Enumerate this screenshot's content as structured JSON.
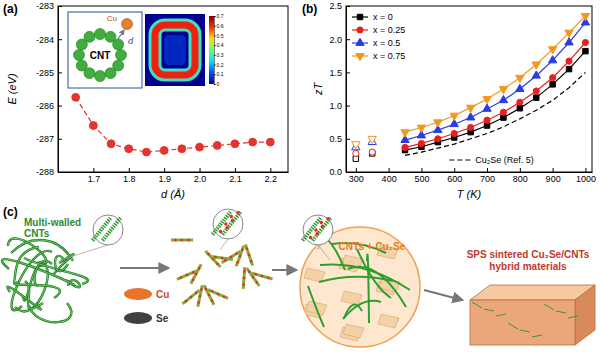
{
  "chart_data": [
    {
      "type": "line",
      "title": "(a)",
      "x_label": "d (Å)",
      "y_label": "E (eV)",
      "x": [
        1.65,
        1.7,
        1.75,
        1.8,
        1.85,
        1.9,
        1.95,
        2.0,
        2.05,
        2.1,
        2.15,
        2.2
      ],
      "xlim": [
        1.6,
        2.25
      ],
      "xticks": [
        1.7,
        1.8,
        1.9,
        {
          "value": 2,
          "label": "2.0"
        },
        2.1,
        2.2
      ],
      "ylim": [
        -288,
        -283
      ],
      "yticks": [
        -288,
        -287,
        -286,
        -285,
        -284,
        -283
      ],
      "series": [
        {
          "color": "#e3342f",
          "marker": "circle",
          "line_style": "dashed",
          "values": [
            -285.75,
            -286.6,
            -287.15,
            -287.3,
            -287.4,
            -287.35,
            -287.3,
            -287.25,
            -287.2,
            -287.15,
            -287.1,
            -287.1
          ]
        }
      ],
      "inset": {
        "labels": [
          "CNT",
          "Cu",
          "d"
        ],
        "colorbar": {
          "range": [
            0,
            0.7
          ],
          "ticks": [
            0,
            0.1,
            0.2,
            0.3,
            0.4,
            0.5,
            0.6,
            0.7
          ]
        }
      }
    },
    {
      "type": "line",
      "title": "(b)",
      "x_label": "T (K)",
      "y_label": "zT",
      "x": [
        450,
        500,
        550,
        600,
        650,
        700,
        750,
        800,
        850,
        900,
        950,
        1000
      ],
      "xlim": [
        270,
        1020
      ],
      "xticks": [
        300,
        400,
        500,
        600,
        700,
        800,
        900,
        1000
      ],
      "ylim": [
        0,
        2.5
      ],
      "yticks": [
        {
          "value": 0,
          "label": "0.0"
        },
        0.5,
        {
          "value": 1,
          "label": "1.0"
        },
        1.5,
        {
          "value": 2,
          "label": "2.0"
        },
        2.5
      ],
      "legend": "upper left",
      "series": [
        {
          "name": "x = 0",
          "color": "#000000",
          "marker": "square",
          "line_style": "solid",
          "values": [
            0.33,
            0.38,
            0.45,
            0.52,
            0.6,
            0.7,
            0.82,
            0.96,
            1.12,
            1.32,
            1.55,
            1.82
          ]
        },
        {
          "name": "x = 0.25",
          "color": "#e8201c",
          "marker": "circle",
          "line_style": "solid",
          "values": [
            0.37,
            0.43,
            0.5,
            0.58,
            0.67,
            0.78,
            0.9,
            1.05,
            1.22,
            1.42,
            1.67,
            1.95
          ]
        },
        {
          "name": "x = 0.5",
          "color": "#2a3ee0",
          "marker": "triangle-up",
          "line_style": "solid",
          "values": [
            0.48,
            0.55,
            0.63,
            0.72,
            0.82,
            0.95,
            1.08,
            1.25,
            1.45,
            1.68,
            1.95,
            2.25
          ]
        },
        {
          "name": "x = 0.75",
          "color": "#f5961e",
          "marker": "triangle-down",
          "line_style": "solid",
          "values": [
            0.6,
            0.67,
            0.75,
            0.85,
            0.97,
            1.1,
            1.25,
            1.42,
            1.62,
            1.85,
            2.1,
            2.35
          ]
        },
        {
          "color": "#000000",
          "marker": "open-square",
          "line_style": "none",
          "x": [
            300,
            350
          ],
          "values": [
            0.2,
            0.28
          ]
        },
        {
          "color": "#e8201c",
          "marker": "open-circle",
          "line_style": "none",
          "x": [
            300,
            350
          ],
          "values": [
            0.28,
            0.3
          ]
        },
        {
          "color": "#2a3ee0",
          "marker": "open-triangle-up",
          "line_style": "none",
          "x": [
            300,
            350
          ],
          "values": [
            0.37,
            0.45
          ]
        },
        {
          "color": "#f5961e",
          "marker": "open-triangle-down",
          "line_style": "none",
          "x": [
            300,
            350
          ],
          "values": [
            0.42,
            0.5
          ]
        },
        {
          "name": "Cu₂Se (Ref. 5)",
          "color": "#000000",
          "marker": "none",
          "line_style": "dashed",
          "values": [
            0.25,
            0.3,
            0.36,
            0.42,
            0.5,
            0.58,
            0.68,
            0.8,
            0.93,
            1.08,
            1.27,
            1.5
          ]
        }
      ]
    }
  ],
  "diagram": {
    "title": "(c)",
    "cnt_label": [
      "Multi-walled",
      "CNTs"
    ],
    "powders": [
      "Cu",
      "Se"
    ],
    "mixture_label": "CNTs + Cu₂Se",
    "product_label": [
      "SPS sintered Cu₂Se/CNTs",
      "hybrid materials"
    ]
  }
}
